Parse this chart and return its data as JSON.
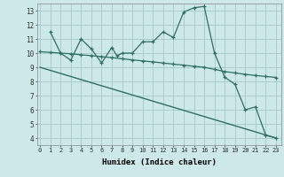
{
  "xlabel": "Humidex (Indice chaleur)",
  "x_ticks": [
    0,
    1,
    2,
    3,
    4,
    5,
    6,
    7,
    8,
    9,
    10,
    11,
    12,
    13,
    14,
    15,
    16,
    17,
    18,
    19,
    20,
    21,
    22,
    23
  ],
  "ylim": [
    3.5,
    13.5
  ],
  "xlim": [
    -0.3,
    23.5
  ],
  "yticks": [
    4,
    5,
    6,
    7,
    8,
    9,
    10,
    11,
    12,
    13
  ],
  "bg_color": "#cce8e8",
  "grid_color": "#aacccc",
  "line_color": "#2e7060",
  "line1_x": [
    1,
    2,
    3,
    4,
    5,
    6,
    7,
    7.5,
    8,
    9,
    10,
    11,
    12,
    13,
    14,
    15,
    16,
    17,
    18,
    19,
    20,
    21,
    22,
    23
  ],
  "line1_y": [
    11.5,
    10.0,
    9.5,
    11.0,
    10.3,
    9.3,
    10.4,
    9.8,
    10.0,
    10.0,
    10.8,
    10.8,
    11.5,
    11.1,
    12.9,
    13.2,
    13.3,
    10.0,
    8.3,
    7.8,
    6.0,
    6.2,
    4.2,
    4.0
  ],
  "line2_x": [
    0,
    23
  ],
  "line2_y": [
    9.0,
    4.0
  ],
  "line3_x": [
    0,
    1,
    2,
    3,
    4,
    5,
    6,
    7,
    8,
    9,
    10,
    11,
    12,
    13,
    14,
    15,
    16,
    17,
    18,
    19,
    20,
    21,
    22,
    23
  ],
  "line3_y": [
    10.1,
    10.05,
    10.0,
    9.95,
    9.88,
    9.82,
    9.75,
    9.68,
    9.6,
    9.52,
    9.45,
    9.38,
    9.3,
    9.22,
    9.15,
    9.07,
    9.0,
    8.85,
    8.7,
    8.6,
    8.5,
    8.42,
    8.35,
    8.28
  ]
}
